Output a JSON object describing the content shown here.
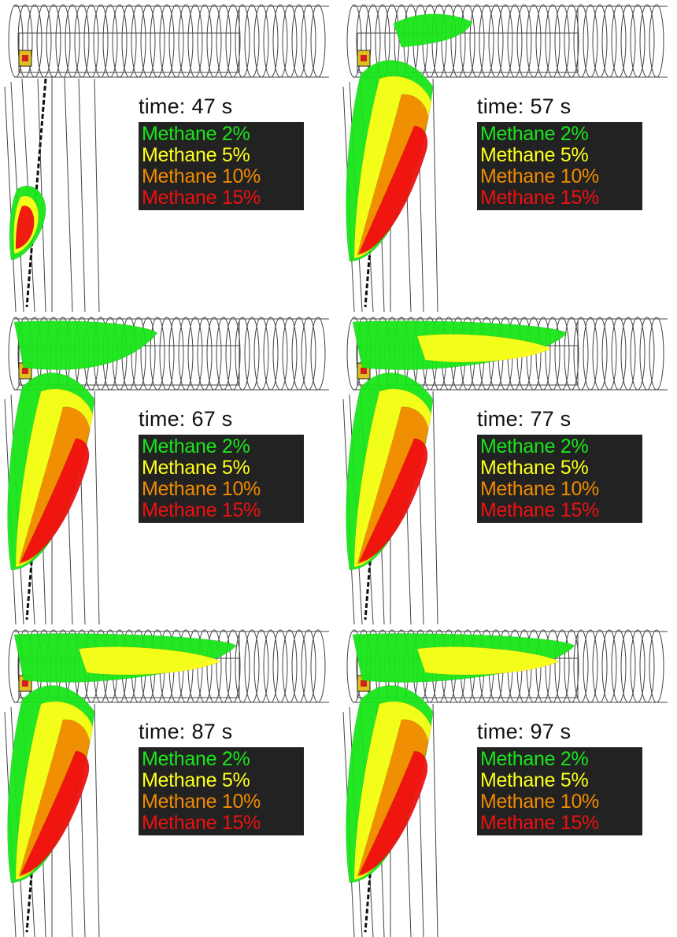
{
  "time_prefix": "time:",
  "legend": [
    {
      "label": "Methane 2%",
      "color": "#19e619"
    },
    {
      "label": "Methane 5%",
      "color": "#ffff1a"
    },
    {
      "label": "Methane 10%",
      "color": "#f08a00"
    },
    {
      "label": "Methane 15%",
      "color": "#f01010"
    }
  ],
  "panels": [
    {
      "time": "47 s",
      "stage": 0
    },
    {
      "time": "57 s",
      "stage": 1
    },
    {
      "time": "67 s",
      "stage": 2
    },
    {
      "time": "77 s",
      "stage": 3
    },
    {
      "time": "87 s",
      "stage": 4
    },
    {
      "time": "97 s",
      "stage": 5
    }
  ]
}
